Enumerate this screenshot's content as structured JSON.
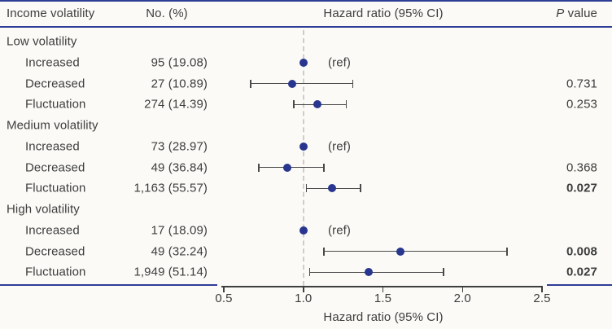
{
  "header": {
    "col_income": "Income volatility",
    "col_n": "No. (%)",
    "col_hr": "Hazard ratio (95% CI)",
    "col_p_italic": "P",
    "col_p_rest": " value"
  },
  "colors": {
    "navy_rule": "#2e3d96",
    "point": "#28368f",
    "ci_line": "#4a4a4a",
    "ref_dashed": "#cdcdcb",
    "text": "#3d3d3d",
    "background": "#fbfaf7"
  },
  "chart_data": {
    "type": "forest",
    "title": "",
    "xlabel": "Hazard ratio (95% CI)",
    "xlim": [
      0.5,
      2.5
    ],
    "reference_line": 1.0,
    "ticks": [
      "0.5",
      "1.0",
      "1.5",
      "2.0",
      "2.5"
    ],
    "ref_label": "(ref)",
    "rows": [
      {
        "type": "group",
        "label": "Low volatility"
      },
      {
        "type": "item",
        "label": "Increased",
        "n": "95",
        "pct": "(19.08)",
        "ref": true,
        "est": 1.0
      },
      {
        "type": "item",
        "label": "Decreased",
        "n": "27",
        "pct": "(10.89)",
        "est": 0.93,
        "lo": 0.67,
        "hi": 1.31,
        "p": "0.731",
        "p_bold": false
      },
      {
        "type": "item",
        "label": "Fluctuation",
        "n": "274",
        "pct": "(14.39)",
        "est": 1.09,
        "lo": 0.94,
        "hi": 1.27,
        "p": "0.253",
        "p_bold": false
      },
      {
        "type": "group",
        "label": "Medium volatility"
      },
      {
        "type": "item",
        "label": "Increased",
        "n": "73",
        "pct": "(28.97)",
        "ref": true,
        "est": 1.0
      },
      {
        "type": "item",
        "label": "Decreased",
        "n": "49",
        "pct": "(36.84)",
        "est": 0.9,
        "lo": 0.72,
        "hi": 1.13,
        "p": "0.368",
        "p_bold": false
      },
      {
        "type": "item",
        "label": "Fluctuation",
        "n": "1,163",
        "pct": "(55.57)",
        "est": 1.18,
        "lo": 1.02,
        "hi": 1.36,
        "p": "0.027",
        "p_bold": true
      },
      {
        "type": "group",
        "label": "High volatility"
      },
      {
        "type": "item",
        "label": "Increased",
        "n": "17",
        "pct": "(18.09)",
        "ref": true,
        "est": 1.0
      },
      {
        "type": "item",
        "label": "Decreased",
        "n": "49",
        "pct": "(32.24)",
        "est": 1.61,
        "lo": 1.13,
        "hi": 2.28,
        "p": "0.008",
        "p_bold": true
      },
      {
        "type": "item",
        "label": "Fluctuation",
        "n": "1,949",
        "pct": "(51.14)",
        "est": 1.41,
        "lo": 1.04,
        "hi": 1.88,
        "p": "0.027",
        "p_bold": true
      }
    ]
  }
}
